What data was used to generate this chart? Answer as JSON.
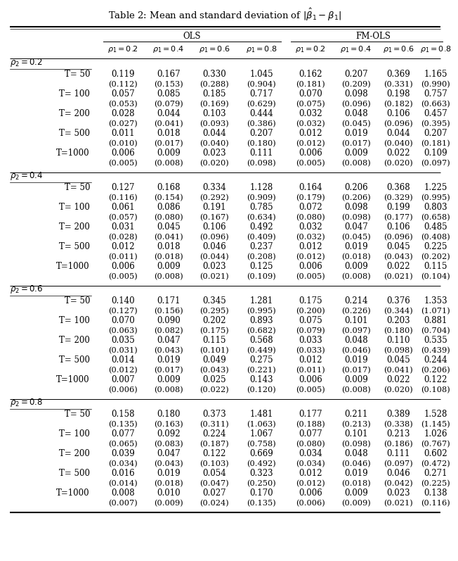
{
  "title": "Table 2: Mean and standard deviation of $|\\hat{\\beta}_1 - \\beta_1|$",
  "col_groups": [
    "OLS",
    "FM-OLS"
  ],
  "col_headers": [
    "$\\rho_1 = 0.2$",
    "$\\rho_1 = 0.4$",
    "$\\rho_1 = 0.6$",
    "$\\rho_1 = 0.8$",
    "$\\rho_1 = 0.2$",
    "$\\rho_1 = 0.4$",
    "$\\rho_1 = 0.6$",
    "$\\rho_1 = 0.8$"
  ],
  "sections": [
    {
      "label": "$\\rho_2 = 0.2$",
      "rows": [
        {
          "T": "T= 50",
          "mean": [
            "0.119",
            "0.167",
            "0.330",
            "1.045",
            "0.162",
            "0.207",
            "0.369",
            "1.165"
          ],
          "sd": [
            "(0.112)",
            "(0.153)",
            "(0.288)",
            "(0.904)",
            "(0.181)",
            "(0.209)",
            "(0.331)",
            "(0.990)"
          ]
        },
        {
          "T": "T= 100",
          "mean": [
            "0.057",
            "0.085",
            "0.185",
            "0.717",
            "0.070",
            "0.098",
            "0.198",
            "0.757"
          ],
          "sd": [
            "(0.053)",
            "(0.079)",
            "(0.169)",
            "(0.629)",
            "(0.075)",
            "(0.096)",
            "(0.182)",
            "(0.663)"
          ]
        },
        {
          "T": "T= 200",
          "mean": [
            "0.028",
            "0.044",
            "0.103",
            "0.444",
            "0.032",
            "0.048",
            "0.106",
            "0.457"
          ],
          "sd": [
            "(0.027)",
            "(0.041)",
            "(0.093)",
            "(0.386)",
            "(0.032)",
            "(0.045)",
            "(0.096)",
            "(0.395)"
          ]
        },
        {
          "T": "T= 500",
          "mean": [
            "0.011",
            "0.018",
            "0.044",
            "0.207",
            "0.012",
            "0.019",
            "0.044",
            "0.207"
          ],
          "sd": [
            "(0.010)",
            "(0.017)",
            "(0.040)",
            "(0.180)",
            "(0.012)",
            "(0.017)",
            "(0.040)",
            "(0.181)"
          ]
        },
        {
          "T": "T=1000",
          "mean": [
            "0.006",
            "0.009",
            "0.023",
            "0.111",
            "0.006",
            "0.009",
            "0.022",
            "0.109"
          ],
          "sd": [
            "(0.005)",
            "(0.008)",
            "(0.020)",
            "(0.098)",
            "(0.005)",
            "(0.008)",
            "(0.020)",
            "(0.097)"
          ]
        }
      ]
    },
    {
      "label": "$\\rho_2 = 0.4$",
      "rows": [
        {
          "T": "T= 50",
          "mean": [
            "0.127",
            "0.168",
            "0.334",
            "1.128",
            "0.164",
            "0.206",
            "0.368",
            "1.225"
          ],
          "sd": [
            "(0.116)",
            "(0.154)",
            "(0.292)",
            "(0.909)",
            "(0.179)",
            "(0.206)",
            "(0.329)",
            "(0.995)"
          ]
        },
        {
          "T": "T= 100",
          "mean": [
            "0.061",
            "0.086",
            "0.191",
            "0.785",
            "0.072",
            "0.098",
            "0.199",
            "0.803"
          ],
          "sd": [
            "(0.057)",
            "(0.080)",
            "(0.167)",
            "(0.634)",
            "(0.080)",
            "(0.098)",
            "(0.177)",
            "(0.658)"
          ]
        },
        {
          "T": "T= 200",
          "mean": [
            "0.031",
            "0.045",
            "0.106",
            "0.492",
            "0.032",
            "0.047",
            "0.106",
            "0.485"
          ],
          "sd": [
            "(0.028)",
            "(0.041)",
            "(0.096)",
            "(0.409)",
            "(0.032)",
            "(0.045)",
            "(0.096)",
            "(0.408)"
          ]
        },
        {
          "T": "T= 500",
          "mean": [
            "0.012",
            "0.018",
            "0.046",
            "0.237",
            "0.012",
            "0.019",
            "0.045",
            "0.225"
          ],
          "sd": [
            "(0.011)",
            "(0.018)",
            "(0.044)",
            "(0.208)",
            "(0.012)",
            "(0.018)",
            "(0.043)",
            "(0.202)"
          ]
        },
        {
          "T": "T=1000",
          "mean": [
            "0.006",
            "0.009",
            "0.023",
            "0.125",
            "0.006",
            "0.009",
            "0.022",
            "0.115"
          ],
          "sd": [
            "(0.005)",
            "(0.008)",
            "(0.021)",
            "(0.109)",
            "(0.005)",
            "(0.008)",
            "(0.021)",
            "(0.104)"
          ]
        }
      ]
    },
    {
      "label": "$\\rho_2 = 0.6$",
      "rows": [
        {
          "T": "T= 50",
          "mean": [
            "0.140",
            "0.171",
            "0.345",
            "1.281",
            "0.175",
            "0.214",
            "0.376",
            "1.353"
          ],
          "sd": [
            "(0.127)",
            "(0.156)",
            "(0.295)",
            "(0.995)",
            "(0.200)",
            "(0.226)",
            "(0.344)",
            "(1.071)"
          ]
        },
        {
          "T": "T= 100",
          "mean": [
            "0.070",
            "0.090",
            "0.202",
            "0.893",
            "0.075",
            "0.101",
            "0.203",
            "0.881"
          ],
          "sd": [
            "(0.063)",
            "(0.082)",
            "(0.175)",
            "(0.682)",
            "(0.079)",
            "(0.097)",
            "(0.180)",
            "(0.704)"
          ]
        },
        {
          "T": "T= 200",
          "mean": [
            "0.035",
            "0.047",
            "0.115",
            "0.568",
            "0.033",
            "0.048",
            "0.110",
            "0.535"
          ],
          "sd": [
            "(0.031)",
            "(0.043)",
            "(0.101)",
            "(0.449)",
            "(0.033)",
            "(0.046)",
            "(0.098)",
            "(0.439)"
          ]
        },
        {
          "T": "T= 500",
          "mean": [
            "0.014",
            "0.019",
            "0.049",
            "0.275",
            "0.012",
            "0.019",
            "0.045",
            "0.244"
          ],
          "sd": [
            "(0.012)",
            "(0.017)",
            "(0.043)",
            "(0.221)",
            "(0.011)",
            "(0.017)",
            "(0.041)",
            "(0.206)"
          ]
        },
        {
          "T": "T=1000",
          "mean": [
            "0.007",
            "0.009",
            "0.025",
            "0.143",
            "0.006",
            "0.009",
            "0.022",
            "0.122"
          ],
          "sd": [
            "(0.006)",
            "(0.008)",
            "(0.022)",
            "(0.120)",
            "(0.005)",
            "(0.008)",
            "(0.020)",
            "(0.108)"
          ]
        }
      ]
    },
    {
      "label": "$\\rho_2 = 0.8$",
      "rows": [
        {
          "T": "T= 50",
          "mean": [
            "0.158",
            "0.180",
            "0.373",
            "1.481",
            "0.177",
            "0.211",
            "0.389",
            "1.528"
          ],
          "sd": [
            "(0.135)",
            "(0.163)",
            "(0.311)",
            "(1.063)",
            "(0.188)",
            "(0.213)",
            "(0.338)",
            "(1.145)"
          ]
        },
        {
          "T": "T= 100",
          "mean": [
            "0.077",
            "0.092",
            "0.224",
            "1.067",
            "0.077",
            "0.101",
            "0.213",
            "1.026"
          ],
          "sd": [
            "(0.065)",
            "(0.083)",
            "(0.187)",
            "(0.758)",
            "(0.080)",
            "(0.098)",
            "(0.186)",
            "(0.767)"
          ]
        },
        {
          "T": "T= 200",
          "mean": [
            "0.039",
            "0.047",
            "0.122",
            "0.669",
            "0.034",
            "0.048",
            "0.111",
            "0.602"
          ],
          "sd": [
            "(0.034)",
            "(0.043)",
            "(0.103)",
            "(0.492)",
            "(0.034)",
            "(0.046)",
            "(0.097)",
            "(0.472)"
          ]
        },
        {
          "T": "T= 500",
          "mean": [
            "0.016",
            "0.019",
            "0.054",
            "0.323",
            "0.012",
            "0.019",
            "0.046",
            "0.271"
          ],
          "sd": [
            "(0.014)",
            "(0.018)",
            "(0.047)",
            "(0.250)",
            "(0.012)",
            "(0.018)",
            "(0.042)",
            "(0.225)"
          ]
        },
        {
          "T": "T=1000",
          "mean": [
            "0.008",
            "0.010",
            "0.027",
            "0.170",
            "0.006",
            "0.009",
            "0.023",
            "0.138"
          ],
          "sd": [
            "(0.007)",
            "(0.009)",
            "(0.024)",
            "(0.135)",
            "(0.006)",
            "(0.009)",
            "(0.021)",
            "(0.116)"
          ]
        }
      ]
    }
  ],
  "font_size": 8.5,
  "header_font_size": 8.5,
  "title_font_size": 9.5,
  "lw_thick": 1.5,
  "lw_thin": 0.7,
  "lw_sect": 0.5
}
